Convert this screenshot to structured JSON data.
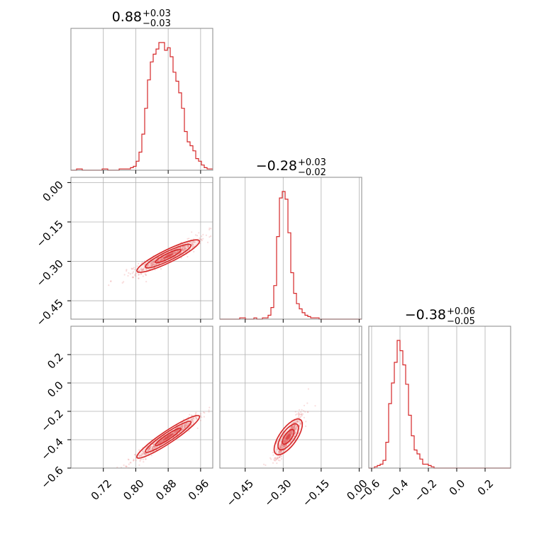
{
  "colors": {
    "line": "#d62728",
    "scatter": "#e87779",
    "grid": "#b0b0b0",
    "frame": "#888888"
  },
  "chart_data": [
    {
      "type": "histogram",
      "panel": "diag-0",
      "title": {
        "median": "0.88",
        "plus": "+0.03",
        "minus": "−0.03"
      },
      "xlim": [
        0.64,
        0.99
      ],
      "xticks": [
        0.72,
        0.8,
        0.88,
        0.96
      ],
      "bin_edges_start": 0.64,
      "bin_width": 0.007,
      "counts": [
        0,
        0,
        1,
        1,
        0,
        0,
        0,
        0,
        0,
        0,
        0,
        1,
        1,
        0,
        0,
        0,
        0,
        1,
        1,
        1,
        1,
        2,
        3,
        7,
        14,
        28,
        48,
        70,
        84,
        90,
        94,
        99,
        99,
        93,
        95,
        88,
        76,
        69,
        60,
        48,
        30,
        22,
        19,
        15,
        9,
        7,
        4,
        2,
        1,
        1
      ]
    },
    {
      "type": "histogram",
      "panel": "diag-1",
      "title": {
        "median": "−0.28",
        "plus": "+0.03",
        "minus": "−0.02"
      },
      "xlim": [
        -0.55,
        0.01
      ],
      "xticks": [
        -0.45,
        -0.3,
        -0.15,
        0.0
      ],
      "bin_edges_start": -0.55,
      "bin_width": 0.0112,
      "counts": [
        0,
        0,
        0,
        0,
        0,
        0,
        0,
        1,
        1,
        0,
        0,
        0,
        1,
        0,
        0,
        1,
        1,
        3,
        9,
        26,
        64,
        94,
        99,
        93,
        67,
        36,
        20,
        12,
        8,
        5,
        3,
        2,
        1,
        1,
        1,
        0,
        0,
        0,
        0,
        0,
        0,
        0,
        0,
        0,
        0,
        0,
        0,
        0,
        0,
        0
      ]
    },
    {
      "type": "histogram",
      "panel": "diag-2",
      "title": {
        "median": "−0.38",
        "plus": "+0.06",
        "minus": "−0.05"
      },
      "xlim": [
        -0.62,
        0.38
      ],
      "xticks": [
        -0.6,
        -0.4,
        -0.2,
        0.0,
        0.2
      ],
      "xticklabels": [
        "−0.6",
        "−0.4",
        "−0.2",
        "0.0",
        "0.2"
      ],
      "bin_edges_start": -0.62,
      "bin_width": 0.02,
      "counts": [
        0,
        0,
        1,
        2,
        3,
        6,
        20,
        50,
        66,
        82,
        99,
        91,
        80,
        65,
        41,
        25,
        14,
        11,
        7,
        3,
        3,
        2,
        1,
        0,
        0,
        0,
        0,
        0,
        0,
        0,
        0,
        0,
        0,
        0,
        0,
        0,
        0,
        0,
        0,
        0,
        0,
        0,
        0,
        0,
        0,
        0,
        0,
        0,
        0,
        0
      ]
    },
    {
      "type": "scatter",
      "panel": "pair-1-0",
      "xlim": [
        0.64,
        0.99
      ],
      "ylim": [
        -0.52,
        0.02
      ],
      "yticks": [
        0.0,
        -0.15,
        -0.3,
        -0.45
      ],
      "yticklabels": [
        "0.00",
        "−0.15",
        "−0.30",
        "−0.45"
      ],
      "relation": {
        "x_center": 0.88,
        "y_center": -0.28,
        "slope": 0.75,
        "x_sd": 0.035,
        "resid_sd": 0.007
      },
      "contour_levels": 3
    },
    {
      "type": "scatter",
      "panel": "pair-2-0",
      "xlim": [
        0.64,
        0.99
      ],
      "ylim": [
        -0.6,
        0.4
      ],
      "yticks": [
        0.2,
        0.0,
        -0.2,
        -0.4,
        -0.6
      ],
      "yticklabels": [
        "0.2",
        "0.0",
        "−0.2",
        "−0.4",
        "−0.6"
      ],
      "xticklabels": [
        "0.72",
        "0.80",
        "0.88",
        "0.96"
      ],
      "relation": {
        "x_center": 0.88,
        "y_center": -0.38,
        "slope": 1.9,
        "x_sd": 0.035,
        "resid_sd": 0.012
      },
      "contour_levels": 3
    },
    {
      "type": "scatter",
      "panel": "pair-2-1",
      "xlim": [
        -0.55,
        0.01
      ],
      "ylim": [
        -0.6,
        0.4
      ],
      "xticklabels": [
        "−0.45",
        "−0.30",
        "−0.15",
        "0.00"
      ],
      "relation": {
        "x_center": -0.28,
        "y_center": -0.38,
        "slope": 2.5,
        "x_sd": 0.022,
        "resid_sd": 0.02
      },
      "contour_levels": 3
    }
  ]
}
